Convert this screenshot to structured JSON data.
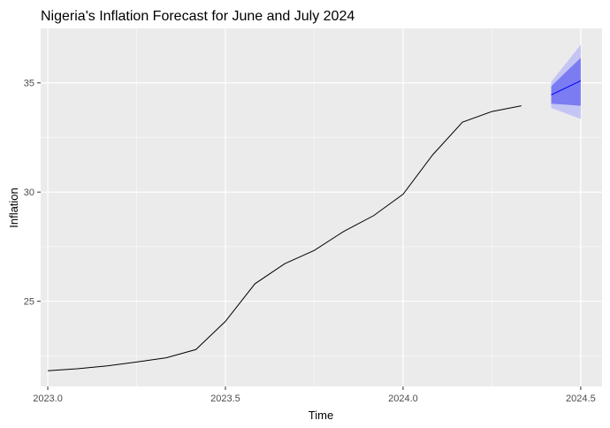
{
  "chart_data": {
    "type": "line",
    "title": "Nigeria's Inflation Forecast for June and July 2024",
    "xlabel": "Time",
    "ylabel": "Inflation",
    "xlim": [
      2022.98,
      2024.56
    ],
    "ylim": [
      21.1,
      37.5
    ],
    "x_ticks": [
      2023.0,
      2023.5,
      2024.0,
      2024.5
    ],
    "x_tick_labels": [
      "2023.0",
      "2023.5",
      "2024.0",
      "2024.5"
    ],
    "y_ticks": [
      25,
      30,
      35
    ],
    "y_tick_labels": [
      "25",
      "30",
      "35"
    ],
    "grid": true,
    "legend": "none",
    "series": [
      {
        "x": [
          2023.0,
          2023.083,
          2023.167,
          2023.25,
          2023.333,
          2023.417,
          2023.5,
          2023.583,
          2023.667,
          2023.75,
          2023.833,
          2023.917,
          2024.0,
          2024.083,
          2024.167,
          2024.25,
          2024.333
        ],
        "values": [
          21.82,
          21.91,
          22.04,
          22.22,
          22.41,
          22.79,
          24.08,
          25.8,
          26.72,
          27.33,
          28.2,
          28.92,
          29.9,
          31.7,
          33.2,
          33.69,
          33.95
        ]
      }
    ],
    "forecast": {
      "x": [
        2024.417,
        2024.5
      ],
      "mean": [
        34.45,
        35.1
      ],
      "lo80": [
        34.05,
        33.95
      ],
      "hi80": [
        34.85,
        36.15
      ],
      "lo95": [
        33.85,
        33.35
      ],
      "hi95": [
        35.05,
        36.75
      ]
    },
    "colors": {
      "panel": "#ebebeb",
      "grid_major": "#ffffff",
      "line": "#000000",
      "forecast_line": "#0000ff",
      "band80": "#7b7cf2",
      "band95": "#c5c5f5",
      "tick_label": "#4d4d4d"
    }
  }
}
